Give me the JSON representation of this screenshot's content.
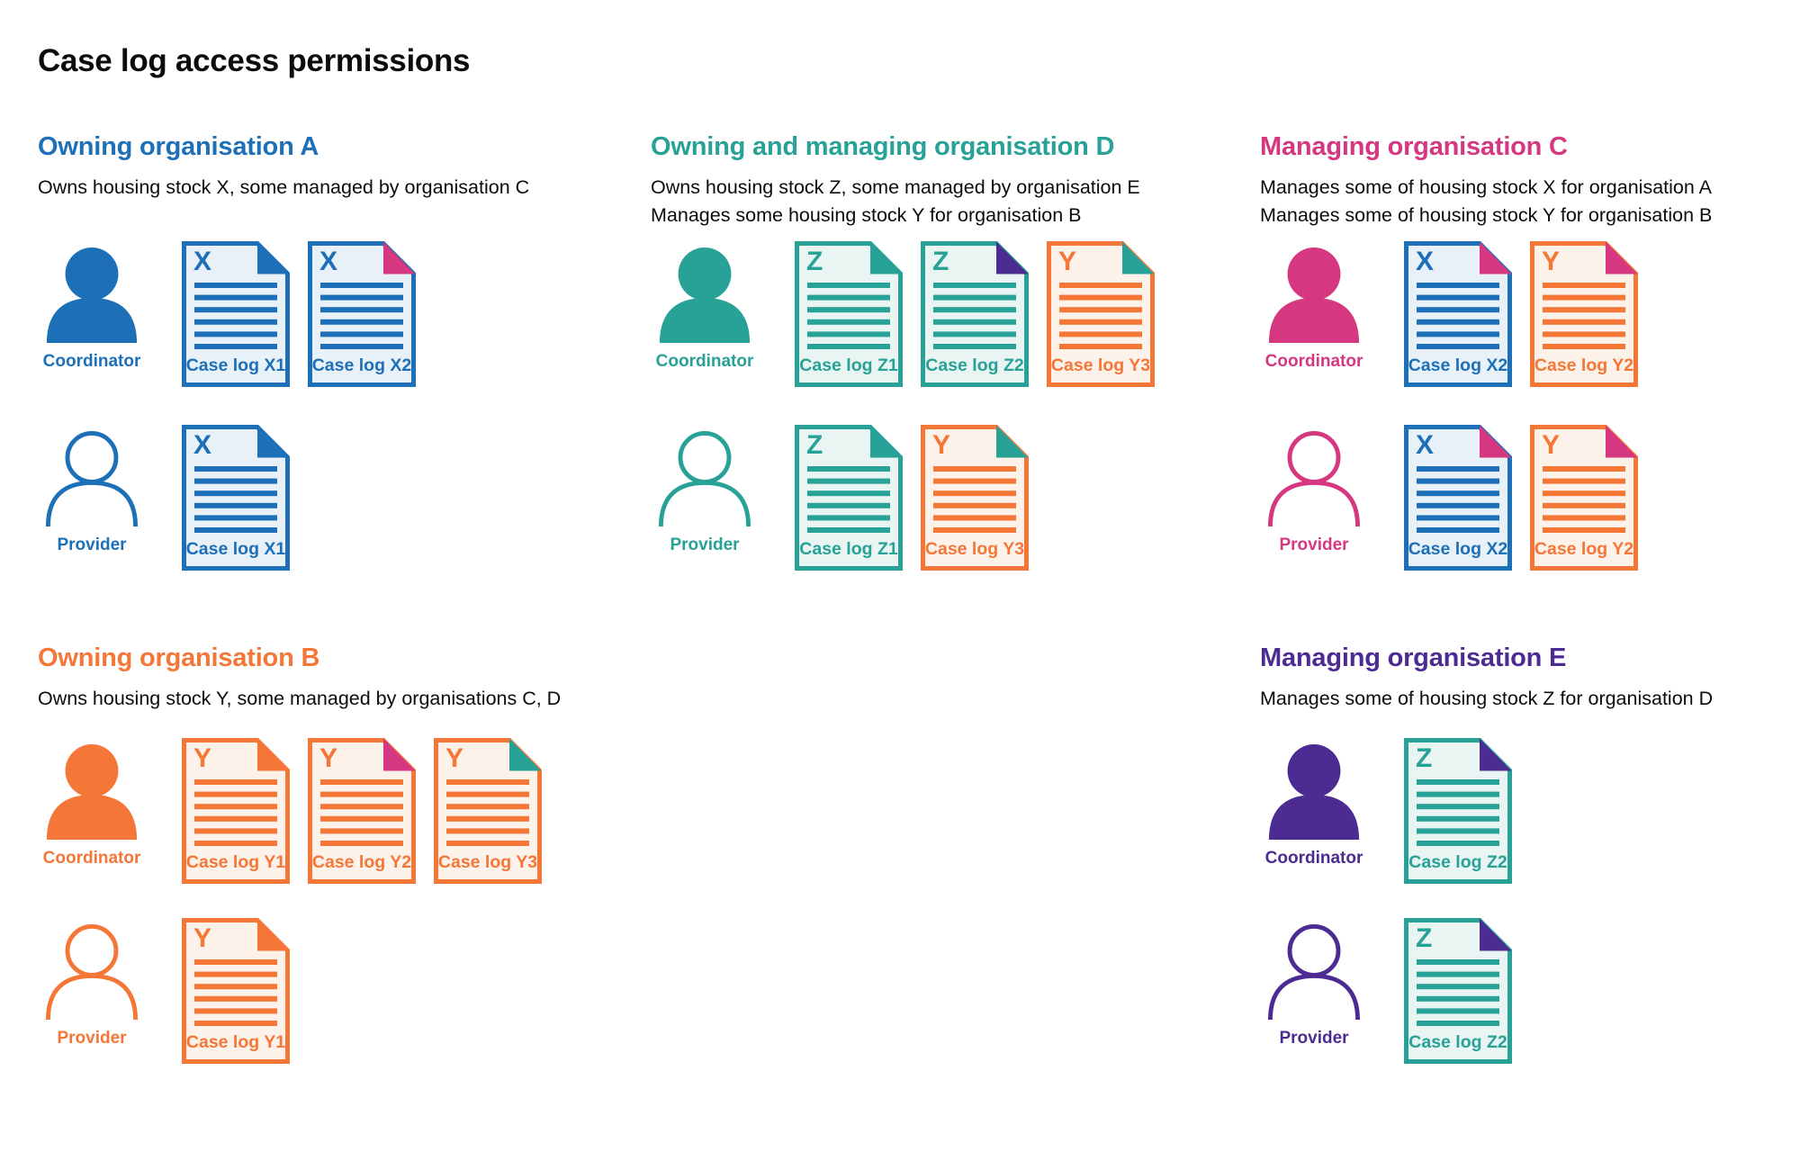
{
  "title": "Case log access permissions",
  "palette": {
    "blue": "#1d70b8",
    "teal": "#28a197",
    "pink": "#d53880",
    "orange": "#f47738",
    "purple": "#4c2c92",
    "text": "#0b0c0c",
    "blue_tint": "#e9f1f8",
    "teal_tint": "#e9f5f2",
    "orange_tint": "#fdf2ea"
  },
  "roles": {
    "coordinator": "Coordinator",
    "provider": "Provider"
  },
  "organisations": [
    {
      "id": "A",
      "title": "Owning organisation A",
      "color": "blue",
      "description": [
        "Owns housing stock X, some managed by organisation C"
      ],
      "rows": [
        {
          "role": "coordinator",
          "person_style": "filled",
          "docs": [
            {
              "letter": "X",
              "label": "Case log X1",
              "color": "blue",
              "corner": "blue"
            },
            {
              "letter": "X",
              "label": "Case log X2",
              "color": "blue",
              "corner": "pink"
            }
          ]
        },
        {
          "role": "provider",
          "person_style": "outline",
          "docs": [
            {
              "letter": "X",
              "label": "Case log X1",
              "color": "blue",
              "corner": "blue"
            }
          ]
        }
      ]
    },
    {
      "id": "D",
      "title": "Owning and managing organisation D",
      "color": "teal",
      "description": [
        "Owns housing stock Z, some managed by organisation E",
        "Manages some housing stock Y for organisation B"
      ],
      "rows": [
        {
          "role": "coordinator",
          "person_style": "filled",
          "docs": [
            {
              "letter": "Z",
              "label": "Case log Z1",
              "color": "teal",
              "corner": "teal"
            },
            {
              "letter": "Z",
              "label": "Case log Z2",
              "color": "teal",
              "corner": "purple"
            },
            {
              "letter": "Y",
              "label": "Case log Y3",
              "color": "orange",
              "corner": "teal"
            }
          ]
        },
        {
          "role": "provider",
          "person_style": "outline",
          "docs": [
            {
              "letter": "Z",
              "label": "Case log Z1",
              "color": "teal",
              "corner": "teal"
            },
            {
              "letter": "Y",
              "label": "Case log Y3",
              "color": "orange",
              "corner": "teal"
            }
          ]
        }
      ]
    },
    {
      "id": "C",
      "title": "Managing organisation C",
      "color": "pink",
      "description": [
        "Manages some of housing stock X for organisation A",
        "Manages some of housing stock Y for organisation B"
      ],
      "rows": [
        {
          "role": "coordinator",
          "person_style": "filled",
          "docs": [
            {
              "letter": "X",
              "label": "Case log X2",
              "color": "blue",
              "corner": "pink"
            },
            {
              "letter": "Y",
              "label": "Case log Y2",
              "color": "orange",
              "corner": "pink"
            }
          ]
        },
        {
          "role": "provider",
          "person_style": "outline",
          "docs": [
            {
              "letter": "X",
              "label": "Case log X2",
              "color": "blue",
              "corner": "pink"
            },
            {
              "letter": "Y",
              "label": "Case log Y2",
              "color": "orange",
              "corner": "pink"
            }
          ]
        }
      ]
    },
    {
      "id": "B",
      "title": "Owning organisation B",
      "color": "orange",
      "description": [
        "Owns housing stock Y, some managed by organisations C, D"
      ],
      "rows": [
        {
          "role": "coordinator",
          "person_style": "filled",
          "docs": [
            {
              "letter": "Y",
              "label": "Case log Y1",
              "color": "orange",
              "corner": "orange"
            },
            {
              "letter": "Y",
              "label": "Case log Y2",
              "color": "orange",
              "corner": "pink"
            },
            {
              "letter": "Y",
              "label": "Case log Y3",
              "color": "orange",
              "corner": "teal"
            }
          ]
        },
        {
          "role": "provider",
          "person_style": "outline",
          "docs": [
            {
              "letter": "Y",
              "label": "Case log Y1",
              "color": "orange",
              "corner": "orange"
            }
          ]
        }
      ]
    },
    {
      "id": "E",
      "title": "Managing organisation E",
      "color": "purple",
      "description": [
        "Manages some of housing stock Z for organisation D"
      ],
      "rows": [
        {
          "role": "coordinator",
          "person_style": "filled",
          "docs": [
            {
              "letter": "Z",
              "label": "Case log Z2",
              "color": "teal",
              "corner": "purple"
            }
          ]
        },
        {
          "role": "provider",
          "person_style": "outline",
          "docs": [
            {
              "letter": "Z",
              "label": "Case log Z2",
              "color": "teal",
              "corner": "purple"
            }
          ]
        }
      ]
    }
  ]
}
